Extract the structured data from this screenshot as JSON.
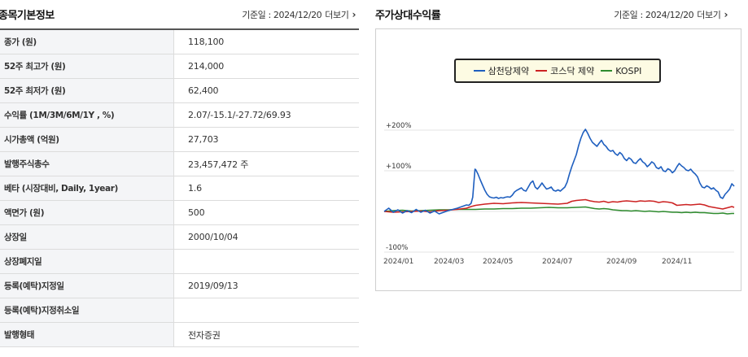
{
  "info": {
    "title": "종목기본정보",
    "ref_date": "기준일 : 2024/12/20",
    "more_label": "더보기",
    "rows": [
      {
        "label": "종가 (원)",
        "value": "118,100"
      },
      {
        "label": "52주 최고가 (원)",
        "value": "214,000"
      },
      {
        "label": "52주 최저가 (원)",
        "value": "62,400"
      },
      {
        "label": "수익률 (1M/3M/6M/1Y , %)",
        "value": "2.07/-15.1/-27.72/69.93"
      },
      {
        "label": "시가총액 (억원)",
        "value": "27,703"
      },
      {
        "label": "발행주식총수",
        "value": "23,457,472 주"
      },
      {
        "label": "베타 (시장대비, Daily, 1year)",
        "value": "1.6"
      },
      {
        "label": "액면가 (원)",
        "value": "500"
      },
      {
        "label": "상장일",
        "value": "2000/10/04"
      },
      {
        "label": "상장폐지일",
        "value": ""
      },
      {
        "label": "등록(예탁)지정일",
        "value": "2019/09/13"
      },
      {
        "label": "등록(예탁)지정취소일",
        "value": ""
      },
      {
        "label": "발행형태",
        "value": "전자증권"
      }
    ]
  },
  "returns": {
    "title": "주가상대수익률",
    "ref_date": "기준일 : 2024/12/20",
    "more_label": "더보기"
  },
  "chart_data": {
    "type": "line",
    "x_ticks": [
      "2024/01",
      "2024/03",
      "2024/05",
      "2024/07",
      "2024/09",
      "2024/11"
    ],
    "y_ticks": [
      "+200%",
      "+100%",
      "-100%"
    ],
    "ylim": [
      -100,
      220
    ],
    "grid": true,
    "legend_position": "top-center",
    "series": [
      {
        "name": "삼천당제약",
        "color": "#1f5fbf",
        "points": [
          [
            0,
            0
          ],
          [
            2,
            8
          ],
          [
            4,
            -2
          ],
          [
            6,
            4
          ],
          [
            8,
            -4
          ],
          [
            10,
            2
          ],
          [
            12,
            -3
          ],
          [
            14,
            5
          ],
          [
            16,
            -2
          ],
          [
            18,
            3
          ],
          [
            20,
            -4
          ],
          [
            22,
            1
          ],
          [
            24,
            -6
          ],
          [
            26,
            -2
          ],
          [
            28,
            2
          ],
          [
            30,
            5
          ],
          [
            32,
            8
          ],
          [
            34,
            12
          ],
          [
            36,
            16
          ],
          [
            37,
            15
          ],
          [
            38,
            20
          ],
          [
            38.7,
            35
          ],
          [
            39.2,
            70
          ],
          [
            39.7,
            104
          ],
          [
            40,
            103
          ],
          [
            41,
            92
          ],
          [
            42,
            78
          ],
          [
            43,
            65
          ],
          [
            44,
            52
          ],
          [
            45,
            42
          ],
          [
            46,
            36
          ],
          [
            47,
            34
          ],
          [
            48,
            33
          ],
          [
            49,
            35
          ],
          [
            50,
            32
          ],
          [
            51,
            34
          ],
          [
            52,
            33
          ],
          [
            53,
            35
          ],
          [
            54,
            36
          ],
          [
            55,
            35
          ],
          [
            56,
            40
          ],
          [
            57,
            48
          ],
          [
            58,
            52
          ],
          [
            59,
            55
          ],
          [
            60,
            58
          ],
          [
            61,
            52
          ],
          [
            62,
            50
          ],
          [
            63,
            60
          ],
          [
            64,
            70
          ],
          [
            65,
            75
          ],
          [
            66,
            60
          ],
          [
            67,
            55
          ],
          [
            68,
            62
          ],
          [
            69,
            70
          ],
          [
            70,
            62
          ],
          [
            71,
            55
          ],
          [
            72,
            57
          ],
          [
            73,
            60
          ],
          [
            74,
            52
          ],
          [
            75,
            50
          ],
          [
            76,
            53
          ],
          [
            77,
            50
          ],
          [
            78,
            55
          ],
          [
            79,
            60
          ],
          [
            80,
            72
          ],
          [
            81,
            92
          ],
          [
            82,
            110
          ],
          [
            83,
            125
          ],
          [
            84,
            140
          ],
          [
            85,
            162
          ],
          [
            86,
            180
          ],
          [
            87,
            194
          ],
          [
            88,
            202
          ],
          [
            89,
            192
          ],
          [
            90,
            180
          ],
          [
            91,
            170
          ],
          [
            92,
            165
          ],
          [
            93,
            160
          ],
          [
            94,
            168
          ],
          [
            95,
            175
          ],
          [
            96,
            165
          ],
          [
            97,
            160
          ],
          [
            98,
            152
          ],
          [
            99,
            148
          ],
          [
            100,
            150
          ],
          [
            101,
            142
          ],
          [
            102,
            138
          ],
          [
            103,
            145
          ],
          [
            104,
            140
          ],
          [
            105,
            130
          ],
          [
            106,
            125
          ],
          [
            107,
            132
          ],
          [
            108,
            128
          ],
          [
            109,
            120
          ],
          [
            110,
            118
          ],
          [
            111,
            125
          ],
          [
            112,
            130
          ],
          [
            113,
            122
          ],
          [
            114,
            118
          ],
          [
            115,
            110
          ],
          [
            116,
            115
          ],
          [
            117,
            122
          ],
          [
            118,
            118
          ],
          [
            119,
            108
          ],
          [
            120,
            105
          ],
          [
            121,
            110
          ],
          [
            122,
            100
          ],
          [
            123,
            98
          ],
          [
            124,
            105
          ],
          [
            125,
            102
          ],
          [
            126,
            95
          ],
          [
            127,
            100
          ],
          [
            128,
            110
          ],
          [
            129,
            118
          ],
          [
            130,
            112
          ],
          [
            131,
            108
          ],
          [
            132,
            102
          ],
          [
            133,
            100
          ],
          [
            134,
            104
          ],
          [
            135,
            97
          ],
          [
            136,
            92
          ],
          [
            137,
            85
          ],
          [
            138,
            70
          ],
          [
            139,
            60
          ],
          [
            140,
            58
          ],
          [
            141,
            63
          ],
          [
            142,
            60
          ],
          [
            143,
            55
          ],
          [
            144,
            58
          ],
          [
            145,
            52
          ],
          [
            146,
            48
          ],
          [
            147,
            35
          ],
          [
            148,
            32
          ],
          [
            149,
            42
          ],
          [
            150,
            48
          ],
          [
            151,
            55
          ],
          [
            152,
            68
          ],
          [
            153,
            62
          ]
        ]
      },
      {
        "name": "코스닥 제약",
        "color": "#cc2222",
        "points": [
          [
            0,
            0
          ],
          [
            4,
            -2
          ],
          [
            8,
            -1
          ],
          [
            12,
            0
          ],
          [
            16,
            1
          ],
          [
            20,
            -1
          ],
          [
            24,
            2
          ],
          [
            28,
            3
          ],
          [
            32,
            5
          ],
          [
            36,
            8
          ],
          [
            38,
            12
          ],
          [
            40,
            15
          ],
          [
            44,
            18
          ],
          [
            48,
            20
          ],
          [
            52,
            19
          ],
          [
            56,
            21
          ],
          [
            60,
            22
          ],
          [
            64,
            21
          ],
          [
            68,
            20
          ],
          [
            72,
            19
          ],
          [
            76,
            18
          ],
          [
            80,
            20
          ],
          [
            82,
            25
          ],
          [
            84,
            27
          ],
          [
            86,
            28
          ],
          [
            88,
            29
          ],
          [
            90,
            26
          ],
          [
            92,
            24
          ],
          [
            94,
            23
          ],
          [
            96,
            25
          ],
          [
            98,
            22
          ],
          [
            100,
            24
          ],
          [
            102,
            23
          ],
          [
            104,
            25
          ],
          [
            106,
            26
          ],
          [
            108,
            25
          ],
          [
            110,
            24
          ],
          [
            112,
            26
          ],
          [
            114,
            25
          ],
          [
            116,
            26
          ],
          [
            118,
            25
          ],
          [
            120,
            22
          ],
          [
            122,
            24
          ],
          [
            124,
            23
          ],
          [
            126,
            21
          ],
          [
            128,
            15
          ],
          [
            130,
            16
          ],
          [
            132,
            17
          ],
          [
            134,
            16
          ],
          [
            136,
            17
          ],
          [
            138,
            18
          ],
          [
            140,
            16
          ],
          [
            142,
            12
          ],
          [
            144,
            10
          ],
          [
            146,
            8
          ],
          [
            148,
            6
          ],
          [
            150,
            9
          ],
          [
            152,
            12
          ],
          [
            153,
            10
          ]
        ]
      },
      {
        "name": "KOSPI",
        "color": "#2e8b2e",
        "points": [
          [
            0,
            0
          ],
          [
            4,
            2
          ],
          [
            8,
            3
          ],
          [
            12,
            1
          ],
          [
            16,
            2
          ],
          [
            20,
            3
          ],
          [
            24,
            4
          ],
          [
            28,
            4
          ],
          [
            32,
            5
          ],
          [
            36,
            5
          ],
          [
            40,
            5
          ],
          [
            44,
            6
          ],
          [
            48,
            6
          ],
          [
            52,
            7
          ],
          [
            56,
            7
          ],
          [
            60,
            8
          ],
          [
            64,
            8
          ],
          [
            68,
            9
          ],
          [
            72,
            10
          ],
          [
            76,
            9
          ],
          [
            80,
            9
          ],
          [
            84,
            10
          ],
          [
            88,
            11
          ],
          [
            90,
            9
          ],
          [
            92,
            7
          ],
          [
            94,
            6
          ],
          [
            96,
            7
          ],
          [
            98,
            6
          ],
          [
            100,
            4
          ],
          [
            102,
            3
          ],
          [
            104,
            2
          ],
          [
            106,
            2
          ],
          [
            108,
            1
          ],
          [
            110,
            2
          ],
          [
            112,
            1
          ],
          [
            114,
            0
          ],
          [
            116,
            1
          ],
          [
            118,
            0
          ],
          [
            120,
            -1
          ],
          [
            122,
            0
          ],
          [
            124,
            -1
          ],
          [
            126,
            -2
          ],
          [
            128,
            -2
          ],
          [
            130,
            -3
          ],
          [
            132,
            -2
          ],
          [
            134,
            -3
          ],
          [
            136,
            -2
          ],
          [
            138,
            -3
          ],
          [
            140,
            -3
          ],
          [
            142,
            -4
          ],
          [
            144,
            -5
          ],
          [
            146,
            -5
          ],
          [
            148,
            -4
          ],
          [
            150,
            -6
          ],
          [
            152,
            -5
          ],
          [
            153,
            -5
          ]
        ]
      }
    ]
  }
}
